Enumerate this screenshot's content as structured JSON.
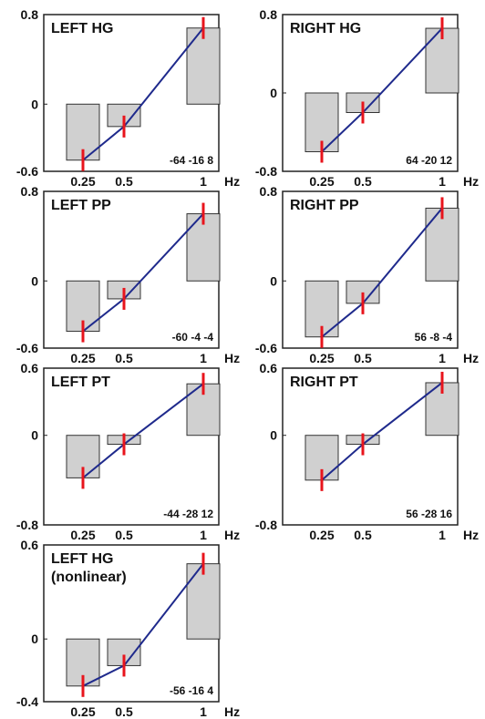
{
  "chart_data": [
    {
      "type": "bar",
      "title": "LEFT HG",
      "categories": [
        "0.25",
        "0.5",
        "1"
      ],
      "unit_label": "Hz",
      "values": [
        -0.5,
        -0.2,
        0.68
      ],
      "line_values": [
        -0.5,
        -0.2,
        0.68
      ],
      "ylim": [
        -0.6,
        0.8
      ],
      "yticks": [
        "0.8",
        "0",
        "-0.6"
      ],
      "coords": "-64 -16 8"
    },
    {
      "type": "bar",
      "title": "RIGHT HG",
      "categories": [
        "0.25",
        "0.5",
        "1"
      ],
      "unit_label": "Hz",
      "values": [
        -0.6,
        -0.2,
        0.66
      ],
      "line_values": [
        -0.6,
        -0.2,
        0.66
      ],
      "ylim": [
        -0.8,
        0.8
      ],
      "yticks": [
        "0.8",
        "0",
        "-0.8"
      ],
      "coords": "64 -20 12"
    },
    {
      "type": "bar",
      "title": "LEFT PP",
      "categories": [
        "0.25",
        "0.5",
        "1"
      ],
      "unit_label": "Hz",
      "values": [
        -0.45,
        -0.16,
        0.6
      ],
      "line_values": [
        -0.45,
        -0.16,
        0.6
      ],
      "ylim": [
        -0.6,
        0.8
      ],
      "yticks": [
        "0.8",
        "0",
        "-0.6"
      ],
      "coords": "-60 -4 -4"
    },
    {
      "type": "bar",
      "title": "RIGHT PP",
      "categories": [
        "0.25",
        "0.5",
        "1"
      ],
      "unit_label": "Hz",
      "values": [
        -0.5,
        -0.2,
        0.65
      ],
      "line_values": [
        -0.5,
        -0.2,
        0.65
      ],
      "ylim": [
        -0.6,
        0.8
      ],
      "yticks": [
        "0.8",
        "0",
        "-0.6"
      ],
      "coords": "56 -8 -4"
    },
    {
      "type": "bar",
      "title": "LEFT PT",
      "categories": [
        "0.25",
        "0.5",
        "1"
      ],
      "unit_label": "Hz",
      "values": [
        -0.38,
        -0.08,
        0.46
      ],
      "line_values": [
        -0.38,
        -0.08,
        0.46
      ],
      "ylim": [
        -0.8,
        0.6
      ],
      "yticks": [
        "0.6",
        "0",
        "-0.8"
      ],
      "coords": "-44 -28 12"
    },
    {
      "type": "bar",
      "title": "RIGHT PT",
      "categories": [
        "0.25",
        "0.5",
        "1"
      ],
      "unit_label": "Hz",
      "values": [
        -0.4,
        -0.08,
        0.47
      ],
      "line_values": [
        -0.4,
        -0.08,
        0.47
      ],
      "ylim": [
        -0.8,
        0.6
      ],
      "yticks": [
        "0.6",
        "0",
        "-0.8"
      ],
      "coords": "56 -28 16"
    },
    {
      "type": "bar",
      "title": "LEFT HG",
      "title_line2": "(nonlinear)",
      "categories": [
        "0.25",
        "0.5",
        "1"
      ],
      "unit_label": "Hz",
      "values": [
        -0.3,
        -0.17,
        0.48
      ],
      "line_values": [
        -0.3,
        -0.17,
        0.48
      ],
      "ylim": [
        -0.4,
        0.6
      ],
      "yticks": [
        "0.6",
        "0",
        "-0.4"
      ],
      "coords": "-56 -16 4"
    }
  ],
  "colors": {
    "bar_fill": "#d0d0d0",
    "bar_stroke": "#333333",
    "line": "#1f2a8c",
    "error": "#e8141c",
    "frame": "#222222"
  }
}
